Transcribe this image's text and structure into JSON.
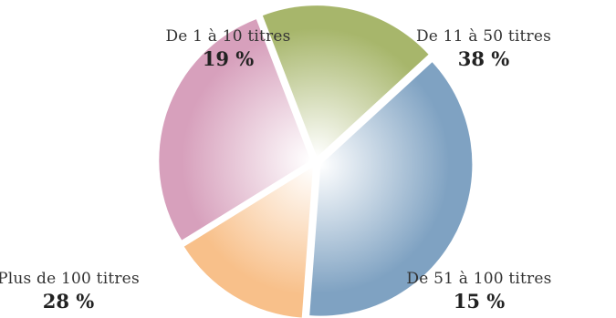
{
  "chart_data": {
    "type": "pie",
    "slices": [
      {
        "label": "De 1 à 10 titres",
        "value": 19,
        "display": "19 %",
        "color": "#a7b66b"
      },
      {
        "label": "De 11 à 50 titres",
        "value": 38,
        "display": "38 %",
        "color": "#7fa2c2"
      },
      {
        "label": "De 51 à 100 titres",
        "value": 15,
        "display": "15 %",
        "color": "#f8c08a"
      },
      {
        "label": "Plus de 100 titres",
        "value": 28,
        "display": "28 %",
        "color": "#d7a0bc"
      }
    ],
    "start_angle_deg": -21,
    "exploded": true,
    "legend": "none"
  }
}
